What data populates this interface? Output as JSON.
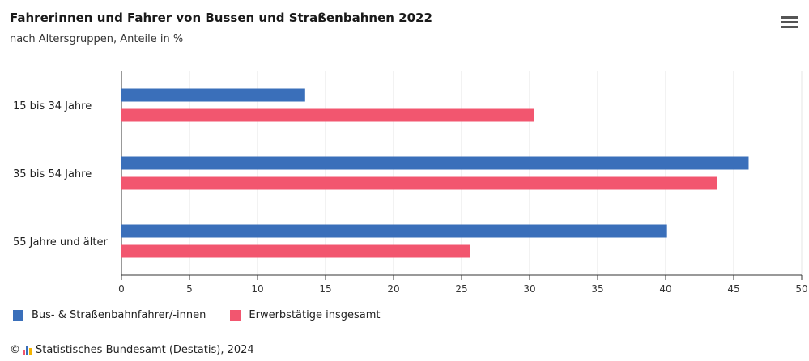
{
  "header": {
    "title": "Fahrerinnen und Fahrer von Bussen und Straßenbahnen 2022",
    "subtitle": "nach Altersgruppen, Anteile in %",
    "menu_icon": "hamburger-menu-icon"
  },
  "footer": {
    "copyright": "©",
    "source": "Statistisches Bundesamt (Destatis), 2024"
  },
  "colors": {
    "series_blue": "#3a6fba",
    "series_red": "#f2566f",
    "grid": "#e4e4e4",
    "axis": "#333333"
  },
  "chart_data": {
    "type": "bar",
    "orientation": "horizontal",
    "title": "Fahrerinnen und Fahrer von Bussen und Straßenbahnen 2022",
    "subtitle": "nach Altersgruppen, Anteile in %",
    "categories": [
      "15 bis 34 Jahre",
      "35 bis 54 Jahre",
      "55 Jahre und älter"
    ],
    "series": [
      {
        "name": "Bus- & Straßenbahnfahrer/-innen",
        "values": [
          13.5,
          46.1,
          40.1
        ]
      },
      {
        "name": "Erwerbstätige insgesamt",
        "values": [
          30.3,
          43.8,
          25.6
        ]
      }
    ],
    "xlim": [
      0,
      50
    ],
    "xticks": [
      "0",
      "5",
      "10",
      "15",
      "20",
      "25",
      "30",
      "35",
      "40",
      "45",
      "50"
    ],
    "grid": true,
    "legend_position": "bottom-left"
  }
}
